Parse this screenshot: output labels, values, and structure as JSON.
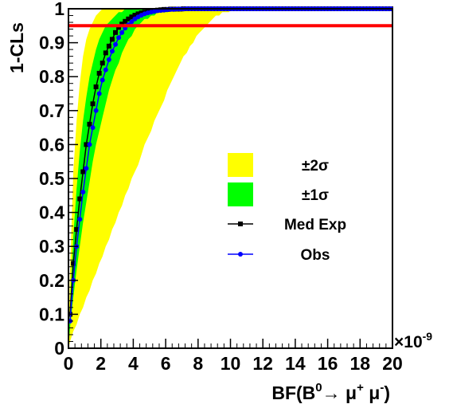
{
  "chart_data": {
    "type": "line",
    "xlabel": {
      "pre": "BF(B",
      "sup1": "0",
      "arrow": "→ μ",
      "sup2": "+",
      "mid": " μ",
      "sup3": "-",
      "post": ")"
    },
    "ylabel": "1-CLs",
    "x_multiplier": {
      "base": "×10",
      "exp": "-9"
    },
    "xlim": [
      0,
      20
    ],
    "ylim": [
      0,
      1
    ],
    "xticks": [
      "0",
      "2",
      "4",
      "6",
      "8",
      "10",
      "12",
      "14",
      "16",
      "18",
      "20"
    ],
    "yticks": [
      "0",
      "0.1",
      "0.2",
      "0.3",
      "0.4",
      "0.5",
      "0.6",
      "0.7",
      "0.8",
      "0.9",
      "1"
    ],
    "cl_line": {
      "y": 0.95,
      "color": "#ff0000"
    },
    "legend": {
      "position": "center-right",
      "entries": [
        {
          "label": "±2σ",
          "kind": "fill",
          "color": "#ffff00"
        },
        {
          "label": "±1σ",
          "kind": "fill",
          "color": "#00ff00"
        },
        {
          "label": "Med Exp",
          "kind": "line-square",
          "color": "#000000"
        },
        {
          "label": "Obs",
          "kind": "line-circle",
          "color": "#0000ff"
        }
      ]
    },
    "x": [
      0.1,
      0.3,
      0.5,
      0.7,
      0.9,
      1.1,
      1.3,
      1.5,
      1.7,
      1.9,
      2.1,
      2.3,
      2.5,
      2.7,
      2.9,
      3.1,
      3.3,
      3.5,
      3.7,
      3.9,
      4.1,
      4.3,
      4.5,
      4.7,
      4.9,
      5.1,
      5.3,
      5.5,
      5.7,
      5.9,
      6.1,
      6.3,
      6.5,
      6.7,
      6.9,
      7.1,
      7.3,
      7.5,
      7.7,
      7.9,
      8.1,
      8.3,
      8.5,
      8.7,
      8.9,
      9.1,
      9.3,
      9.5,
      9.7,
      9.9,
      10.1,
      10.3,
      10.5,
      10.7,
      10.9,
      11.1,
      11.3,
      11.5,
      11.7,
      11.9,
      12.1,
      12.3,
      12.5,
      12.7,
      12.9,
      13.1,
      13.3,
      13.5,
      13.7,
      13.9,
      14.1,
      14.3,
      14.5,
      14.7,
      14.9,
      15.1,
      15.3,
      15.5,
      15.7,
      15.9,
      16.1,
      16.3,
      16.5,
      16.7,
      16.9,
      17.1,
      17.3,
      17.5,
      17.7,
      17.9,
      18.1,
      18.3,
      18.5,
      18.7,
      18.9,
      19.1,
      19.3,
      19.5,
      19.7,
      19.9
    ],
    "bands": {
      "two_sigma_upper": [
        0.23,
        0.52,
        0.67,
        0.78,
        0.86,
        0.91,
        0.94,
        0.96,
        0.98,
        0.99,
        1.0,
        1.0,
        1.0,
        1.0,
        1.0,
        1.0,
        1.0,
        1.0,
        1.0,
        1.0,
        1.0,
        1.0,
        1.0,
        1.0,
        1.0,
        1.0,
        1.0,
        1.0,
        1.0,
        1.0,
        1.0,
        1.0,
        1.0,
        1.0,
        1.0,
        1.0,
        1.0,
        1.0,
        1.0,
        1.0,
        1.0,
        1.0,
        1.0,
        1.0,
        1.0,
        1.0,
        1.0,
        1.0,
        1.0,
        1.0,
        1.0,
        1.0,
        1.0,
        1.0,
        1.0,
        1.0,
        1.0,
        1.0,
        1.0,
        1.0,
        1.0,
        1.0,
        1.0,
        1.0,
        1.0,
        1.0,
        1.0,
        1.0,
        1.0,
        1.0,
        1.0,
        1.0,
        1.0,
        1.0,
        1.0,
        1.0,
        1.0,
        1.0,
        1.0,
        1.0,
        1.0,
        1.0,
        1.0,
        1.0,
        1.0,
        1.0,
        1.0,
        1.0,
        1.0,
        1.0,
        1.0,
        1.0,
        1.0,
        1.0,
        1.0,
        1.0,
        1.0,
        1.0,
        1.0,
        1.0
      ],
      "one_sigma_upper": [
        0.13,
        0.33,
        0.47,
        0.58,
        0.67,
        0.74,
        0.8,
        0.84,
        0.88,
        0.91,
        0.93,
        0.95,
        0.96,
        0.97,
        0.98,
        0.99,
        0.99,
        1.0,
        1.0,
        1.0,
        1.0,
        1.0,
        1.0,
        1.0,
        1.0,
        1.0,
        1.0,
        1.0,
        1.0,
        1.0,
        1.0,
        1.0,
        1.0,
        1.0,
        1.0,
        1.0,
        1.0,
        1.0,
        1.0,
        1.0,
        1.0,
        1.0,
        1.0,
        1.0,
        1.0,
        1.0,
        1.0,
        1.0,
        1.0,
        1.0,
        1.0,
        1.0,
        1.0,
        1.0,
        1.0,
        1.0,
        1.0,
        1.0,
        1.0,
        1.0,
        1.0,
        1.0,
        1.0,
        1.0,
        1.0,
        1.0,
        1.0,
        1.0,
        1.0,
        1.0,
        1.0,
        1.0,
        1.0,
        1.0,
        1.0,
        1.0,
        1.0,
        1.0,
        1.0,
        1.0,
        1.0,
        1.0,
        1.0,
        1.0,
        1.0,
        1.0,
        1.0,
        1.0,
        1.0,
        1.0,
        1.0,
        1.0,
        1.0,
        1.0,
        1.0,
        1.0,
        1.0,
        1.0,
        1.0,
        1.0
      ],
      "one_sigma_lower": [
        0.06,
        0.15,
        0.23,
        0.3,
        0.37,
        0.43,
        0.49,
        0.55,
        0.6,
        0.64,
        0.68,
        0.72,
        0.76,
        0.79,
        0.82,
        0.84,
        0.87,
        0.89,
        0.91,
        0.92,
        0.94,
        0.95,
        0.96,
        0.97,
        0.97,
        0.98,
        0.98,
        0.99,
        0.99,
        0.99,
        0.99,
        1.0,
        1.0,
        1.0,
        1.0,
        1.0,
        1.0,
        1.0,
        1.0,
        1.0,
        1.0,
        1.0,
        1.0,
        1.0,
        1.0,
        1.0,
        1.0,
        1.0,
        1.0,
        1.0,
        1.0,
        1.0,
        1.0,
        1.0,
        1.0,
        1.0,
        1.0,
        1.0,
        1.0,
        1.0,
        1.0,
        1.0,
        1.0,
        1.0,
        1.0,
        1.0,
        1.0,
        1.0,
        1.0,
        1.0,
        1.0,
        1.0,
        1.0,
        1.0,
        1.0,
        1.0,
        1.0,
        1.0,
        1.0,
        1.0,
        1.0,
        1.0,
        1.0,
        1.0,
        1.0,
        1.0,
        1.0,
        1.0,
        1.0,
        1.0,
        1.0,
        1.0,
        1.0,
        1.0,
        1.0,
        1.0,
        1.0,
        1.0,
        1.0,
        1.0
      ],
      "two_sigma_lower": [
        0.02,
        0.05,
        0.07,
        0.1,
        0.12,
        0.15,
        0.17,
        0.2,
        0.22,
        0.25,
        0.27,
        0.3,
        0.32,
        0.35,
        0.37,
        0.4,
        0.42,
        0.45,
        0.47,
        0.5,
        0.52,
        0.54,
        0.57,
        0.6,
        0.62,
        0.64,
        0.67,
        0.69,
        0.71,
        0.73,
        0.76,
        0.78,
        0.8,
        0.82,
        0.84,
        0.86,
        0.87,
        0.89,
        0.9,
        0.92,
        0.93,
        0.94,
        0.95,
        0.96,
        0.97,
        0.98,
        0.98,
        0.99,
        0.99,
        0.99,
        1.0,
        1.0,
        1.0,
        1.0,
        1.0,
        1.0,
        1.0,
        1.0,
        1.0,
        1.0,
        1.0,
        1.0,
        1.0,
        1.0,
        1.0,
        1.0,
        1.0,
        1.0,
        1.0,
        1.0,
        1.0,
        1.0,
        1.0,
        1.0,
        1.0,
        1.0,
        1.0,
        1.0,
        1.0,
        1.0,
        1.0,
        1.0,
        1.0,
        1.0,
        1.0,
        1.0,
        1.0,
        1.0,
        1.0,
        1.0,
        1.0,
        1.0,
        1.0,
        1.0,
        1.0,
        1.0,
        1.0,
        1.0,
        1.0,
        1.0
      ]
    },
    "series": [
      {
        "name": "Med Exp",
        "color": "#000000",
        "marker": "square",
        "values": [
          0.1,
          0.25,
          0.35,
          0.44,
          0.52,
          0.6,
          0.66,
          0.72,
          0.77,
          0.81,
          0.84,
          0.87,
          0.89,
          0.91,
          0.93,
          0.945,
          0.955,
          0.963,
          0.97,
          0.976,
          0.981,
          0.985,
          0.988,
          0.99,
          0.992,
          0.994,
          0.995,
          0.996,
          0.997,
          0.998,
          0.998,
          0.999,
          0.999,
          0.999,
          0.999,
          1.0,
          1.0,
          1.0,
          1.0,
          1.0,
          1.0,
          1.0,
          1.0,
          1.0,
          1.0,
          1.0,
          1.0,
          1.0,
          1.0,
          1.0,
          1.0,
          1.0,
          1.0,
          1.0,
          1.0,
          1.0,
          1.0,
          1.0,
          1.0,
          1.0,
          1.0,
          1.0,
          1.0,
          1.0,
          1.0,
          1.0,
          1.0,
          1.0,
          1.0,
          1.0,
          1.0,
          1.0,
          1.0,
          1.0,
          1.0,
          1.0,
          1.0,
          1.0,
          1.0,
          1.0,
          1.0,
          1.0,
          1.0,
          1.0,
          1.0,
          1.0,
          1.0,
          1.0,
          1.0,
          1.0,
          1.0,
          1.0,
          1.0,
          1.0,
          1.0,
          1.0,
          1.0,
          1.0,
          1.0,
          1.0
        ]
      },
      {
        "name": "Obs",
        "color": "#0000ff",
        "marker": "circle",
        "values": [
          0.08,
          0.2,
          0.3,
          0.38,
          0.46,
          0.53,
          0.6,
          0.65,
          0.7,
          0.75,
          0.79,
          0.82,
          0.85,
          0.875,
          0.895,
          0.915,
          0.93,
          0.943,
          0.953,
          0.962,
          0.97,
          0.976,
          0.981,
          0.985,
          0.988,
          0.99,
          0.992,
          0.994,
          0.995,
          0.996,
          0.997,
          0.998,
          0.998,
          0.999,
          0.999,
          0.999,
          1.0,
          1.0,
          1.0,
          1.0,
          1.0,
          1.0,
          1.0,
          1.0,
          1.0,
          1.0,
          1.0,
          1.0,
          1.0,
          1.0,
          1.0,
          1.0,
          1.0,
          1.0,
          1.0,
          1.0,
          1.0,
          1.0,
          1.0,
          1.0,
          1.0,
          1.0,
          1.0,
          1.0,
          1.0,
          1.0,
          1.0,
          1.0,
          1.0,
          1.0,
          1.0,
          1.0,
          1.0,
          1.0,
          1.0,
          1.0,
          1.0,
          1.0,
          1.0,
          1.0,
          1.0,
          1.0,
          1.0,
          1.0,
          1.0,
          1.0,
          1.0,
          1.0,
          1.0,
          1.0,
          1.0,
          1.0,
          1.0,
          1.0,
          1.0,
          1.0,
          1.0,
          1.0,
          1.0,
          1.0
        ]
      }
    ]
  }
}
